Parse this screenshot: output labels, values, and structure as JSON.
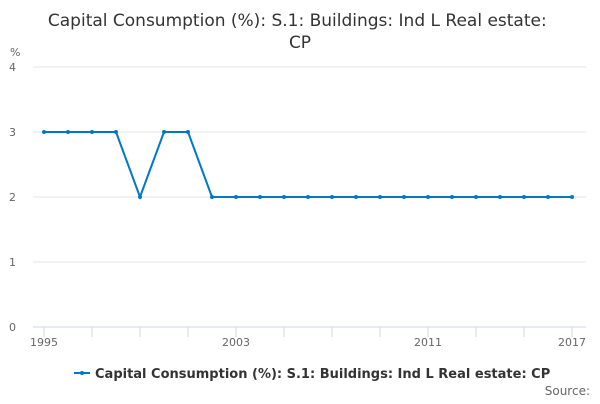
{
  "chart_data": {
    "type": "line",
    "title": "Capital Consumption (%): S.1: Buildings: Ind L Real estate: CP",
    "ylabel": "%",
    "xlabel": "",
    "x": [
      1995,
      1996,
      1997,
      1998,
      1999,
      2000,
      2001,
      2002,
      2003,
      2004,
      2005,
      2006,
      2007,
      2008,
      2009,
      2010,
      2011,
      2012,
      2013,
      2014,
      2015,
      2016,
      2017
    ],
    "series": [
      {
        "name": "Capital Consumption (%): S.1: Buildings: Ind L Real estate: CP",
        "values": [
          3,
          3,
          3,
          3,
          2,
          3,
          3,
          2,
          2,
          2,
          2,
          2,
          2,
          2,
          2,
          2,
          2,
          2,
          2,
          2,
          2,
          2,
          2
        ],
        "color": "#0077c8"
      }
    ],
    "ylim": [
      0,
      4
    ],
    "yticks": [
      "0",
      "1",
      "2",
      "3",
      "4"
    ],
    "xtick_labels": [
      "1995",
      "2003",
      "2011",
      "2017"
    ],
    "grid": true,
    "legend": "bottom"
  },
  "source_label": "Source:"
}
